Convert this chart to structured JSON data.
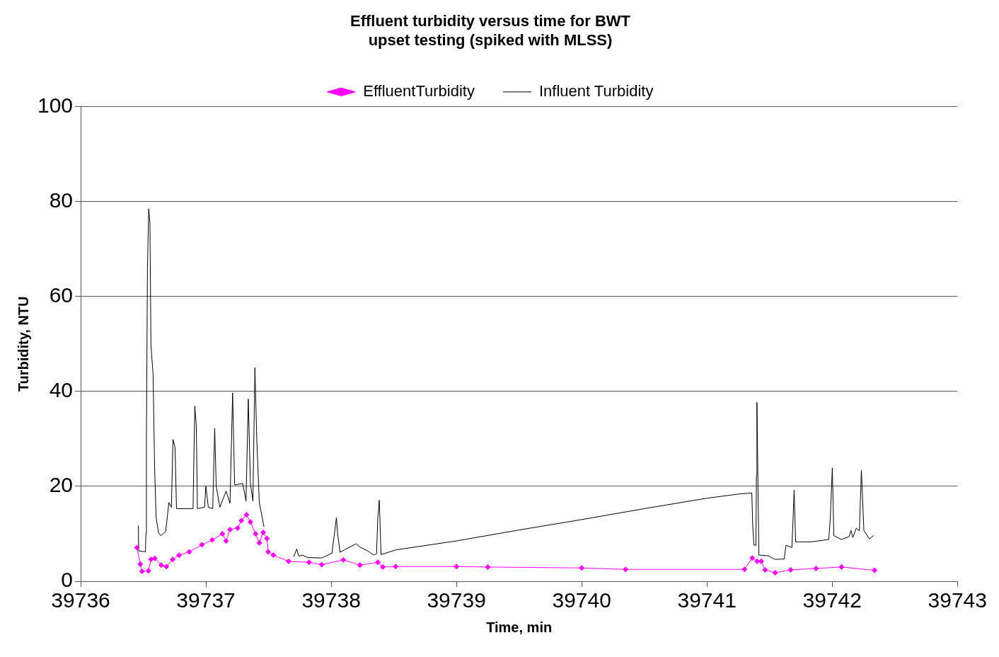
{
  "chart_data": {
    "type": "line",
    "title": "Effluent turbidity versus time for BWT upset testing (spiked with MLSS)",
    "xlabel": "Time, min",
    "ylabel": "Turbidity, NTU",
    "xlim": [
      39736,
      39743
    ],
    "xticks": [
      39736,
      39737,
      39738,
      39739,
      39740,
      39741,
      39742,
      39743
    ],
    "ylim": [
      0,
      100
    ],
    "yticks": [
      0,
      20,
      40,
      60,
      80,
      100
    ],
    "grid": "y",
    "legend": "top",
    "series": [
      {
        "name": "EffluentTurbidity",
        "color": "#ff00ff",
        "marker": "diamond",
        "x": [
          39736.449,
          39736.476,
          39736.49,
          39736.541,
          39736.561,
          39736.592,
          39736.643,
          39736.684,
          39736.734,
          39736.785,
          39736.867,
          39736.968,
          39737.05,
          39737.131,
          39737.161,
          39737.192,
          39737.253,
          39737.283,
          39737.324,
          39737.355,
          39737.396,
          39737.426,
          39737.457,
          39737.487,
          39737.497,
          39737.538,
          39737.66,
          39737.823,
          39737.924,
          39738.097,
          39738.229,
          39738.372,
          39738.412,
          39738.514,
          39739.0,
          39739.25,
          39740.0,
          39740.35,
          39741.3,
          39741.362,
          39741.4,
          39741.433,
          39741.464,
          39741.545,
          39741.668,
          39741.871,
          39742.074,
          39742.339
        ],
        "values": [
          7.1,
          3.6,
          2.1,
          2.2,
          4.6,
          4.8,
          3.4,
          3.1,
          4.6,
          5.5,
          6.2,
          7.7,
          8.7,
          10.0,
          8.5,
          10.9,
          11.2,
          12.8,
          14.0,
          12.5,
          10.0,
          8.1,
          10.3,
          9.0,
          6.2,
          5.5,
          4.2,
          4.0,
          3.5,
          4.5,
          3.4,
          4.0,
          3.0,
          3.1,
          3.1,
          3.0,
          2.8,
          2.5,
          2.5,
          4.9,
          4.2,
          4.2,
          2.4,
          1.8,
          2.4,
          2.7,
          3.0,
          2.3
        ]
      },
      {
        "name": "Influent Turbidity",
        "color": "#000000",
        "marker": "none",
        "x": [
          39736.46,
          39736.463,
          39736.517,
          39736.521,
          39736.525,
          39736.533,
          39736.543,
          39736.553,
          39736.561,
          39736.578,
          39736.59,
          39736.602,
          39736.622,
          39736.639,
          39736.679,
          39736.704,
          39736.724,
          39736.737,
          39736.753,
          39736.765,
          39736.846,
          39736.897,
          39736.911,
          39736.923,
          39736.932,
          39736.989,
          39736.999,
          39737.019,
          39737.054,
          39737.07,
          39737.082,
          39737.111,
          39737.161,
          39737.192,
          39737.213,
          39737.229,
          39737.294,
          39737.32,
          39737.338,
          39737.355,
          39737.375,
          39737.391,
          39737.406,
          39737.426,
          39737.463,
          39737.58,
          39737.701,
          39737.725,
          39737.741,
          39737.771,
          39737.813,
          39737.924,
          39738.006,
          39738.042,
          39738.05,
          39738.071,
          39738.118,
          39738.199,
          39738.23,
          39738.291,
          39738.341,
          39738.362,
          39738.372,
          39738.384,
          39738.398,
          39738.514,
          39739.0,
          39739.5,
          39740.0,
          39740.5,
          39741.0,
          39741.261,
          39741.358,
          39741.366,
          39741.375,
          39741.391,
          39741.395,
          39741.399,
          39741.407,
          39741.415,
          39741.484,
          39741.545,
          39741.617,
          39741.631,
          39741.678,
          39741.688,
          39741.696,
          39741.708,
          39741.83,
          39741.973,
          39741.985,
          39742.001,
          39742.013,
          39742.074,
          39742.135,
          39742.15,
          39742.165,
          39742.192,
          39742.217,
          39742.233,
          39742.253,
          39742.298,
          39742.329
        ],
        "values": [
          11.7,
          6.4,
          6.2,
          10.2,
          30.9,
          66,
          78.5,
          75.5,
          49.7,
          43.5,
          24.1,
          13.4,
          10.2,
          9.6,
          10.5,
          16.6,
          15.6,
          29.9,
          28.3,
          15.3,
          15.3,
          15.3,
          36.9,
          32.8,
          15.3,
          15.6,
          20,
          15.6,
          15.3,
          32.2,
          20,
          15.6,
          19,
          16.4,
          39.7,
          20.3,
          20.6,
          16.9,
          38.4,
          20.6,
          16.9,
          45,
          29.8,
          16.6,
          11.5,
          null,
          5.2,
          6.8,
          5.3,
          5.5,
          5.0,
          4.9,
          5.9,
          13.4,
          10.2,
          6.1,
          6.8,
          7.9,
          7.2,
          6.4,
          5.5,
          5.8,
          13.4,
          17.1,
          5.6,
          6.6,
          8.5,
          10.8,
          13,
          15.3,
          17.5,
          18.4,
          18.6,
          11.5,
          7.6,
          7.6,
          22.2,
          37.7,
          20.9,
          5.5,
          5.4,
          4.6,
          4.7,
          7.6,
          7.1,
          13.4,
          19.2,
          8.3,
          8.3,
          8.8,
          13.4,
          23.9,
          9.6,
          8.8,
          9.4,
          10.7,
          9.2,
          11.2,
          10.6,
          23.4,
          10.7,
          8.9,
          9.6
        ]
      }
    ]
  }
}
